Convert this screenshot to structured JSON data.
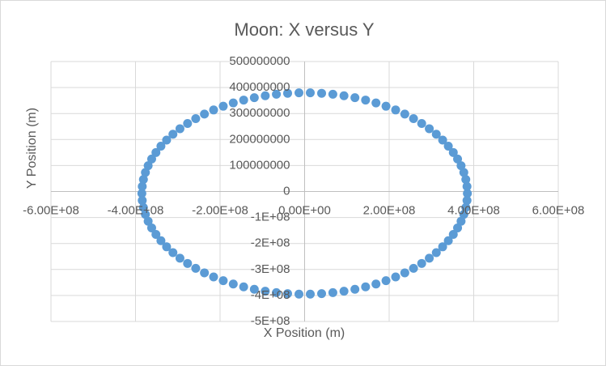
{
  "chart_data": {
    "type": "scatter",
    "title": "Moon: X versus Y",
    "x_label": "X Position (m)",
    "y_label": "Y Position (m)",
    "color": "#5b9bd5",
    "grid": true,
    "xlim": [
      -600000000,
      600000000
    ],
    "ylim": [
      -500000000,
      500000000
    ],
    "xticks": [
      {
        "value": -600000000,
        "label": "-6.00E+08"
      },
      {
        "value": -400000000,
        "label": "-4.00E+08"
      },
      {
        "value": -200000000,
        "label": "-2.00E+08"
      },
      {
        "value": 0,
        "label": "0.00E+00"
      },
      {
        "value": 200000000,
        "label": "2.00E+08"
      },
      {
        "value": 400000000,
        "label": "4.00E+08"
      },
      {
        "value": 600000000,
        "label": "6.00E+08"
      }
    ],
    "yticks": [
      {
        "value": -500000000,
        "label": "-5E+08"
      },
      {
        "value": -400000000,
        "label": "-4E+08"
      },
      {
        "value": -300000000,
        "label": "-3E+08"
      },
      {
        "value": -200000000,
        "label": "-2E+08"
      },
      {
        "value": -100000000,
        "label": "-1E+08"
      },
      0,
      100000000,
      200000000,
      300000000,
      400000000,
      500000000
    ],
    "x": [
      385000000.0,
      384100000.0,
      381300000.0,
      376600000.0,
      370100000.0,
      361800000.0,
      351700000.0,
      339900000.0,
      326500000.0,
      311500000.0,
      294900000.0,
      276900000.0,
      257600000.0,
      237000000.0,
      215300000.0,
      192500000.0,
      168800000.0,
      144200000.0,
      119000000.0,
      93100000.0,
      66800000.0,
      40200000.0,
      13400000.0,
      -13400000.0,
      -40200000.0,
      -66800000.0,
      -93100000.0,
      -119000000.0,
      -144200000.0,
      -168800000.0,
      -192500000.0,
      -215300000.0,
      -237000000.0,
      -257600000.0,
      -276900000.0,
      -294900000.0,
      -311500000.0,
      -326500000.0,
      -339900000.0,
      -351700000.0,
      -361800000.0,
      -370100000.0,
      -376600000.0,
      -381300000.0,
      -384100000.0,
      -385000000.0,
      -384100000.0,
      -381300000.0,
      -376600000.0,
      -370100000.0,
      -361800000.0,
      -351700000.0,
      -339900000.0,
      -326500000.0,
      -311500000.0,
      -294900000.0,
      -276900000.0,
      -257600000.0,
      -237000000.0,
      -215300000.0,
      -192500000.0,
      -168800000.0,
      -144200000.0,
      -119000000.0,
      -93100000.0,
      -66800000.0,
      -40200000.0,
      -13400000.0,
      13400000.0,
      40200000.0,
      66800000.0,
      93100000.0,
      119000000.0,
      144200000.0,
      168800000.0,
      192500000.0,
      215300000.0,
      237000000.0,
      257600000.0,
      276900000.0,
      294900000.0,
      311500000.0,
      326500000.0,
      339900000.0,
      351700000.0,
      361800000.0,
      370100000.0,
      376600000.0,
      381300000.0,
      384100000.0
    ],
    "y": [
      -7500000.0,
      19500000.0,
      46400000.0,
      73100000.0,
      99300000.0,
      125000000.0,
      150100000.0,
      174400000.0,
      197800000.0,
      220300000.0,
      241600000.0,
      261700000.0,
      280500000.0,
      297900000.0,
      313700000.0,
      328100000.0,
      340800000.0,
      351800000.0,
      361100000.0,
      368500000.0,
      374100000.0,
      377900000.0,
      379800000.0,
      379800000.0,
      377900000.0,
      374100000.0,
      368500000.0,
      361100000.0,
      351800000.0,
      340800000.0,
      328100000.0,
      313700000.0,
      297900000.0,
      280500000.0,
      261700000.0,
      241600000.0,
      220300000.0,
      197800000.0,
      174400000.0,
      150100000.0,
      125000000.0,
      99300000.0,
      73100000.0,
      46400000.0,
      19500000.0,
      -7500000.0,
      -34500000.0,
      -61400000.0,
      -88100000.0,
      -114300000.0,
      -140000000.0,
      -165100000.0,
      -189400000.0,
      -212800000.0,
      -235300000.0,
      -256600000.0,
      -276700000.0,
      -295500000.0,
      -312900000.0,
      -328700000.0,
      -343100000.0,
      -355800000.0,
      -366800000.0,
      -376100000.0,
      -383500000.0,
      -389100000.0,
      -392900000.0,
      -394800000.0,
      -394800000.0,
      -392900000.0,
      -389100000.0,
      -383500000.0,
      -376100000.0,
      -366800000.0,
      -355800000.0,
      -343100000.0,
      -328700000.0,
      -312900000.0,
      -295500000.0,
      -276700000.0,
      -256600000.0,
      -235300000.0,
      -212800000.0,
      -189400000.0,
      -165100000.0,
      -140000000.0,
      -114300000.0,
      -88100000.0,
      -61400000.0,
      -34500000.0
    ]
  }
}
